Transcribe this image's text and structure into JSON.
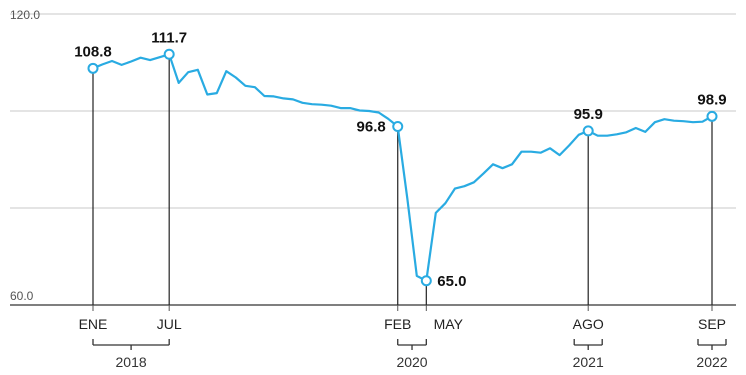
{
  "chart_data": {
    "type": "line",
    "y_ticks": [
      "120.0",
      "60.0"
    ],
    "ylim": [
      60,
      120
    ],
    "grid": true,
    "series": [
      {
        "color": "#29abe2",
        "values": [
          108.8,
          109.6,
          110.3,
          109.5,
          110.2,
          111.0,
          110.5,
          111.1,
          111.7,
          105.8,
          108.0,
          108.5,
          103.4,
          103.7,
          108.2,
          106.9,
          105.2,
          104.9,
          103.1,
          103.0,
          102.6,
          102.4,
          101.7,
          101.4,
          101.3,
          101.1,
          100.6,
          100.6,
          100.1,
          100.0,
          99.7,
          98.4,
          96.8,
          82.0,
          66.0,
          65.0,
          79.0,
          81.0,
          84.0,
          84.5,
          85.3,
          87.1,
          89.0,
          88.2,
          89.0,
          91.6,
          91.6,
          91.4,
          92.3,
          90.9,
          92.9,
          95.1,
          95.9,
          94.9,
          94.9,
          95.2,
          95.6,
          96.5,
          95.7,
          97.7,
          98.3,
          98.0,
          97.9,
          97.7,
          97.8,
          98.9
        ]
      }
    ],
    "labeled_points": [
      {
        "index": 0,
        "label": "108.8"
      },
      {
        "index": 8,
        "label": "111.7"
      },
      {
        "index": 32,
        "label": "96.8"
      },
      {
        "index": 35,
        "label": "65.0"
      },
      {
        "index": 52,
        "label": "95.9"
      },
      {
        "index": 65,
        "label": "98.9"
      }
    ],
    "x_ticks": [
      {
        "index": 0,
        "label": "ENE"
      },
      {
        "index": 8,
        "label": "JUL"
      },
      {
        "index": 32,
        "label": "FEB"
      },
      {
        "index": 35,
        "label": "MAY"
      },
      {
        "index": 52,
        "label": "AGO"
      },
      {
        "index": 65,
        "label": "SEP"
      }
    ],
    "years": [
      {
        "from": 0,
        "to": 8,
        "label": "2018"
      },
      {
        "from": 32,
        "to": 35,
        "label": "2020"
      },
      {
        "from": 52,
        "to": 52,
        "label": "2021"
      },
      {
        "from": 65,
        "to": 65,
        "label": "2022"
      }
    ]
  }
}
